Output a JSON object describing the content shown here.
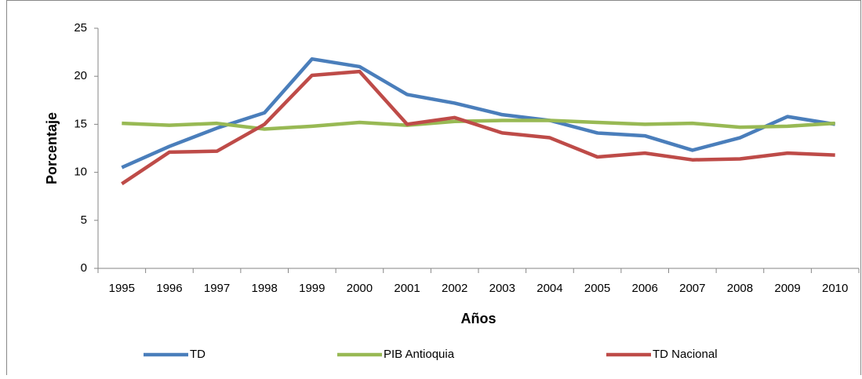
{
  "chart_data": {
    "type": "line",
    "x_label": "Años",
    "y_label": "Porcentaje",
    "categories": [
      "1995",
      "1996",
      "1997",
      "1998",
      "1999",
      "2000",
      "2001",
      "2002",
      "2003",
      "2004",
      "2005",
      "2006",
      "2007",
      "2008",
      "2009",
      "2010"
    ],
    "series": [
      {
        "name": "TD",
        "color": "#4a7ebb",
        "values": [
          10.5,
          12.7,
          14.6,
          16.2,
          21.8,
          21.0,
          18.1,
          17.2,
          16.0,
          15.4,
          14.1,
          13.8,
          12.3,
          13.6,
          15.8,
          15.0
        ]
      },
      {
        "name": "PIB Antioquia",
        "color": "#98b954",
        "values": [
          15.1,
          14.9,
          15.1,
          14.5,
          14.8,
          15.2,
          14.9,
          15.3,
          15.4,
          15.4,
          15.2,
          15.0,
          15.1,
          14.7,
          14.8,
          15.1
        ]
      },
      {
        "name": "TD Nacional",
        "color": "#be4b48",
        "values": [
          8.8,
          12.1,
          12.2,
          15.0,
          20.1,
          20.5,
          15.0,
          15.7,
          14.1,
          13.6,
          11.6,
          12.0,
          11.3,
          11.4,
          12.0,
          11.8
        ]
      }
    ],
    "ylim": [
      0,
      25
    ],
    "yticks": [
      0,
      5,
      10,
      15,
      20,
      25
    ],
    "legend": "bottom"
  }
}
